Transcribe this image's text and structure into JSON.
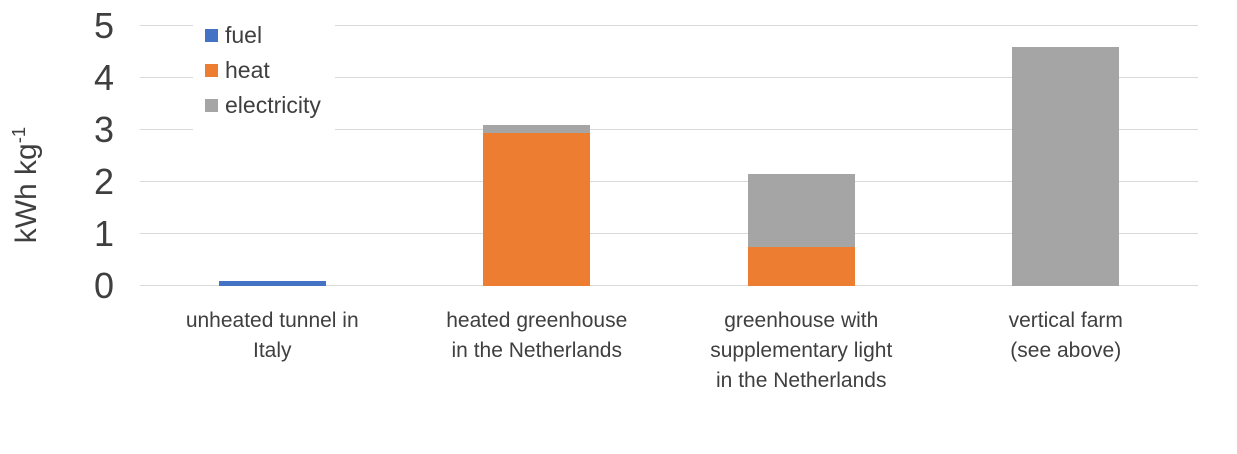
{
  "colors": {
    "background": "#FFFFFF",
    "gridline": "#D9D9D9",
    "text": "#3F3F3F"
  },
  "chart_data": {
    "type": "bar",
    "stacked": true,
    "title": "",
    "ylabel": "kWh kg",
    "ylabel_superscript": "-1",
    "xlabel": "",
    "ylim": [
      0,
      5
    ],
    "y_ticks": [
      0,
      1,
      2,
      3,
      4,
      5
    ],
    "grid": "horizontal",
    "legend_position": "top-left-inside",
    "legend_entries": [
      "fuel",
      "heat",
      "electricity"
    ],
    "categories": [
      {
        "label": "unheated tunnel in Italy",
        "lines": [
          "unheated tunnel in",
          "Italy"
        ]
      },
      {
        "label": "heated greenhouse in the Netherlands",
        "lines": [
          "heated greenhouse",
          "in the Netherlands"
        ]
      },
      {
        "label": "greenhouse with supplementary light in the Netherlands",
        "lines": [
          "greenhouse with",
          "supplementary light",
          "in the Netherlands"
        ]
      },
      {
        "label": "vertical farm (see above)",
        "lines": [
          "vertical farm",
          "(see above)"
        ]
      }
    ],
    "series": [
      {
        "name": "fuel",
        "color": "#4472C4",
        "values": [
          0.1,
          0,
          0,
          0
        ]
      },
      {
        "name": "heat",
        "color": "#ED7D31",
        "values": [
          0,
          2.95,
          0.75,
          0
        ]
      },
      {
        "name": "electricity",
        "color": "#A5A5A5",
        "values": [
          0,
          0.15,
          1.4,
          4.6
        ]
      }
    ]
  }
}
